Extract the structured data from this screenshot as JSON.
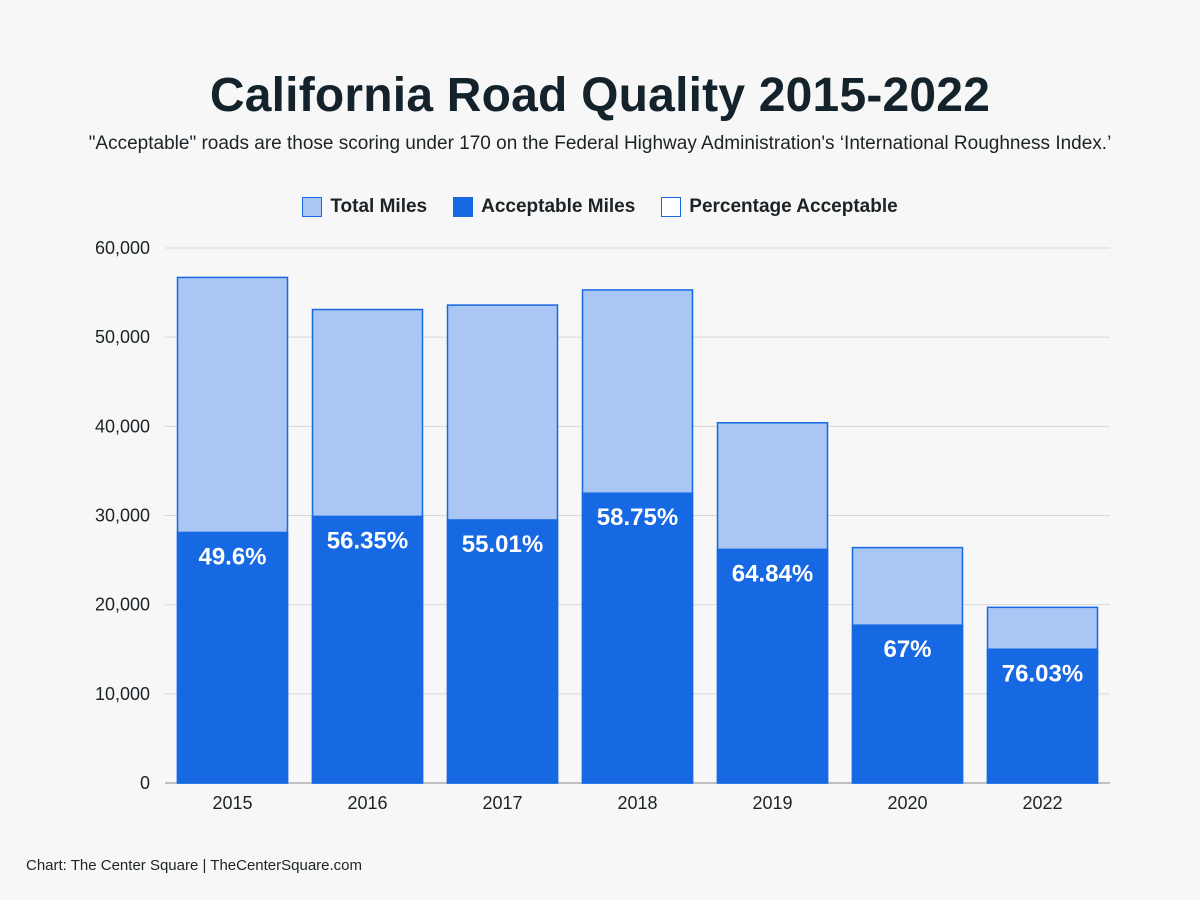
{
  "chart_data": {
    "type": "bar",
    "stacked": "overlay",
    "title": "California Road Quality 2015-2022",
    "subtitle": "\"Acceptable\" roads are those scoring under 170 on the Federal Highway Administration's ‘International Roughness Index.’",
    "categories": [
      "2015",
      "2016",
      "2017",
      "2018",
      "2019",
      "2020",
      "2022"
    ],
    "series": [
      {
        "name": "Total Miles",
        "color": "#a9c6f4",
        "values": [
          56700,
          53100,
          53600,
          55300,
          40400,
          26400,
          19700
        ]
      },
      {
        "name": "Acceptable Miles",
        "color": "#1668e3",
        "values": [
          28100,
          29900,
          29500,
          32500,
          26200,
          17700,
          15000
        ]
      }
    ],
    "data_labels": [
      "49.6%",
      "56.35%",
      "55.01%",
      "58.75%",
      "64.84%",
      "67%",
      "76.03%"
    ],
    "legend": [
      {
        "name": "Total Miles",
        "fill": "#a9c6f4"
      },
      {
        "name": "Acceptable Miles",
        "fill": "#1668e3"
      },
      {
        "name": "Percentage Acceptable",
        "fill": "#ffffff"
      }
    ],
    "ylim": [
      0,
      60000
    ],
    "yticks": [
      "0",
      "10,000",
      "20,000",
      "30,000",
      "40,000",
      "50,000",
      "60,000"
    ],
    "ytick_values": [
      0,
      10000,
      20000,
      30000,
      40000,
      50000,
      60000
    ],
    "grid": true,
    "legend_position": "top-center",
    "xlabel": "",
    "ylabel": ""
  },
  "footer": "Chart: The Center Square | TheCenterSquare.com"
}
